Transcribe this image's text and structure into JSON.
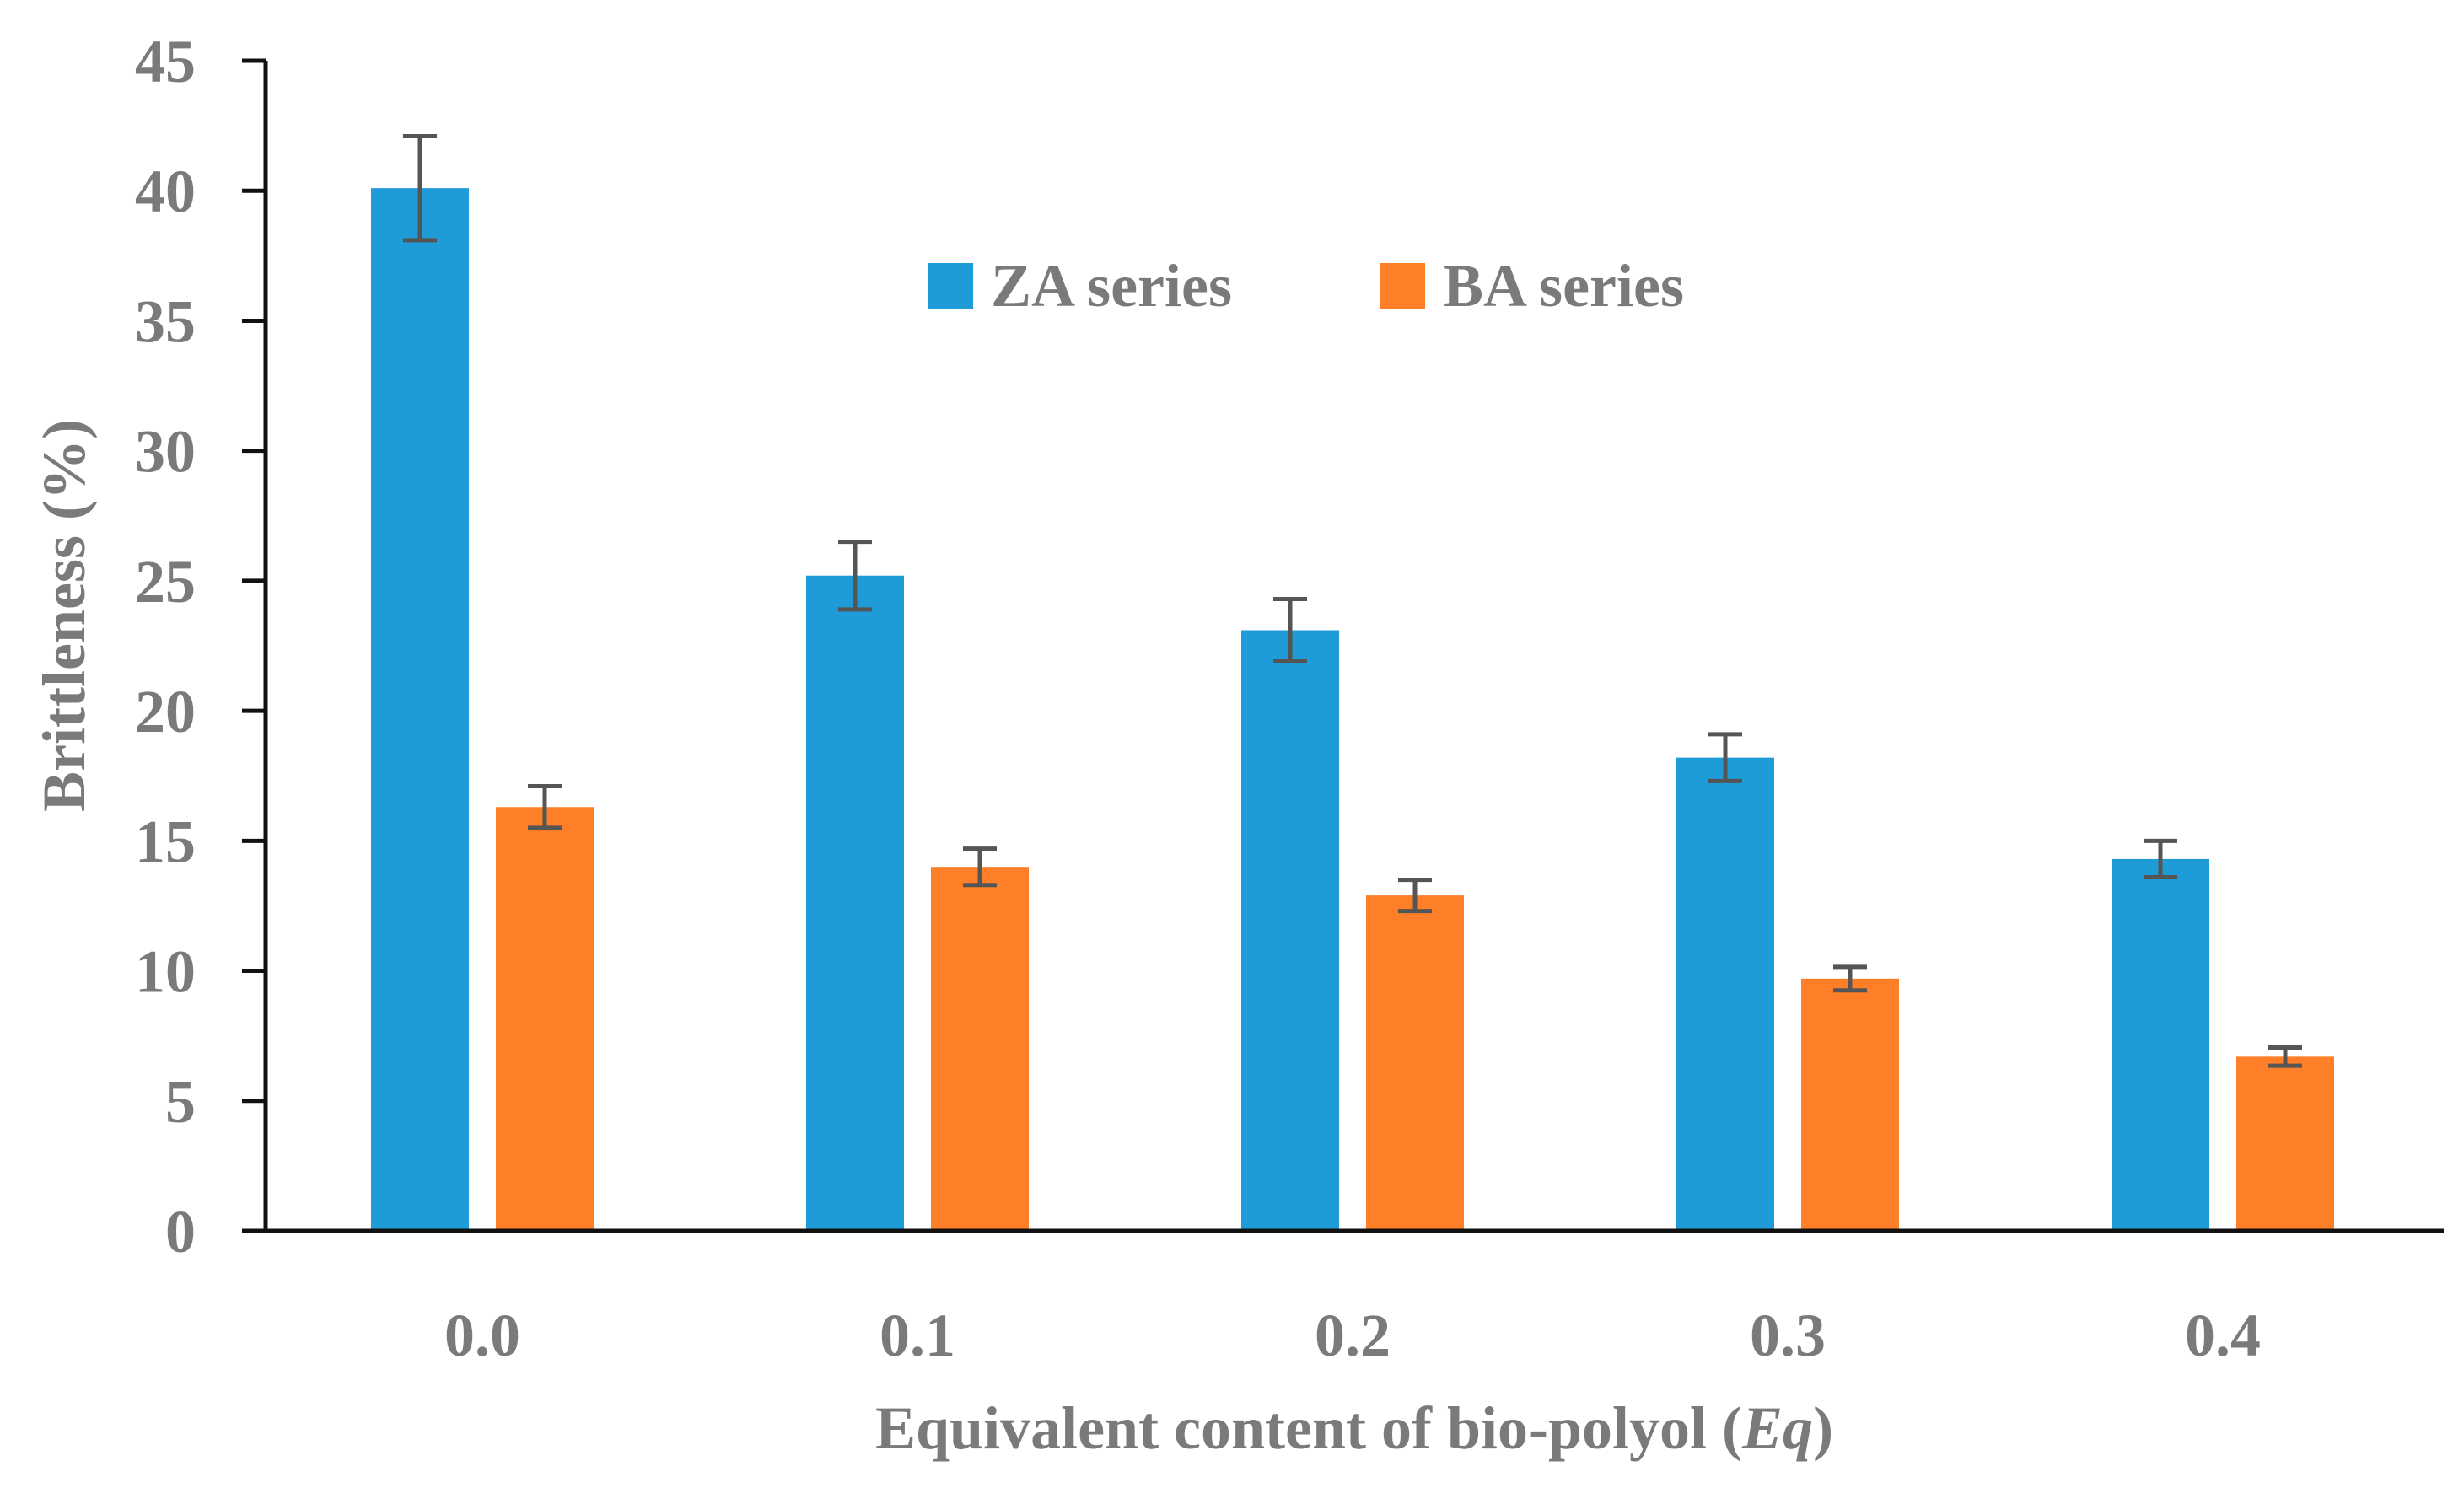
{
  "chart_data": {
    "type": "bar",
    "title": "",
    "xlabel": "Equivalent content of bio-polyol (",
    "xlabel_var": "Eq",
    "xlabel_close": ")",
    "ylabel": "Brittleness (%)",
    "ylim": [
      0,
      45
    ],
    "yticks": [
      "0",
      "5",
      "10",
      "15",
      "20",
      "25",
      "30",
      "35",
      "40",
      "45"
    ],
    "ytick_values": [
      0,
      5,
      10,
      15,
      20,
      25,
      30,
      35,
      40,
      45
    ],
    "categories": [
      "0.0",
      "0.1",
      "0.2",
      "0.3",
      "0.4"
    ],
    "grid": false,
    "legend_position": "top-center",
    "series": [
      {
        "name": "ZA series",
        "color": "#1f9bd7",
        "values": [
          40.1,
          25.2,
          23.1,
          18.2,
          14.3
        ],
        "errors": [
          2.0,
          1.3,
          1.2,
          0.9,
          0.7
        ]
      },
      {
        "name": "BA series",
        "color": "#fe7f27",
        "values": [
          16.3,
          14.0,
          12.9,
          9.7,
          6.7
        ],
        "errors": [
          0.8,
          0.7,
          0.6,
          0.45,
          0.35
        ]
      }
    ]
  }
}
